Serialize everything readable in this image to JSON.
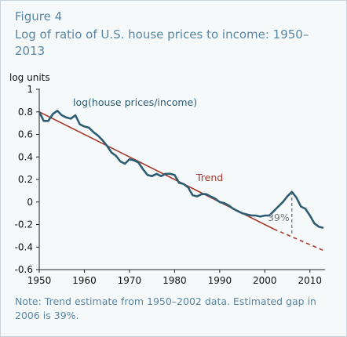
{
  "figure_label": "Figure 4",
  "title": "Log of ratio of U.S. house prices to income: 1950–2013",
  "note": "Note: Trend estimate from 1950–2002 data. Estimated gap in 2006 is 39%.",
  "colors": {
    "series": "#2d5d73",
    "trend": "#a63a2e",
    "text": "#5b86a2",
    "gap": "#666666"
  },
  "chart_data": {
    "type": "line",
    "ylabel": "log units",
    "xlim": [
      1950,
      2013
    ],
    "ylim": [
      -0.6,
      1
    ],
    "x_ticks": [
      1950,
      1960,
      1970,
      1980,
      1990,
      2000,
      2010
    ],
    "y_ticks": [
      -0.6,
      -0.4,
      -0.2,
      0,
      0.2,
      0.4,
      0.6,
      0.8,
      1
    ],
    "grid": false,
    "series": [
      {
        "name": "log(house prices/income)",
        "x": [
          1950,
          1951,
          1952,
          1953,
          1954,
          1955,
          1956,
          1957,
          1958,
          1959,
          1960,
          1961,
          1962,
          1963,
          1964,
          1965,
          1966,
          1967,
          1968,
          1969,
          1970,
          1971,
          1972,
          1973,
          1974,
          1975,
          1976,
          1977,
          1978,
          1979,
          1980,
          1981,
          1982,
          1983,
          1984,
          1985,
          1986,
          1987,
          1988,
          1989,
          1990,
          1991,
          1992,
          1993,
          1994,
          1995,
          1996,
          1997,
          1998,
          1999,
          2000,
          2001,
          2002,
          2003,
          2004,
          2005,
          2006,
          2007,
          2008,
          2009,
          2010,
          2011,
          2012,
          2013
        ],
        "y": [
          0.8,
          0.72,
          0.72,
          0.78,
          0.81,
          0.77,
          0.75,
          0.74,
          0.77,
          0.69,
          0.67,
          0.66,
          0.62,
          0.59,
          0.55,
          0.5,
          0.44,
          0.41,
          0.36,
          0.34,
          0.38,
          0.37,
          0.35,
          0.29,
          0.24,
          0.23,
          0.25,
          0.23,
          0.25,
          0.25,
          0.24,
          0.17,
          0.16,
          0.13,
          0.06,
          0.05,
          0.07,
          0.07,
          0.05,
          0.03,
          0.0,
          -0.01,
          -0.03,
          -0.06,
          -0.08,
          -0.1,
          -0.11,
          -0.12,
          -0.12,
          -0.13,
          -0.12,
          -0.12,
          -0.08,
          -0.04,
          0.0,
          0.05,
          0.09,
          0.04,
          -0.04,
          -0.06,
          -0.12,
          -0.19,
          -0.22,
          -0.23
        ]
      },
      {
        "name": "Trend",
        "x": [
          1950,
          2002
        ],
        "y": [
          0.8,
          -0.24
        ]
      }
    ],
    "trend_projection": {
      "x": [
        2002,
        2013
      ],
      "y": [
        -0.24,
        -0.43
      ]
    },
    "annotations": [
      {
        "text": "39%",
        "x": 2006,
        "y_top": 0.09,
        "y_bottom": -0.3
      }
    ]
  }
}
